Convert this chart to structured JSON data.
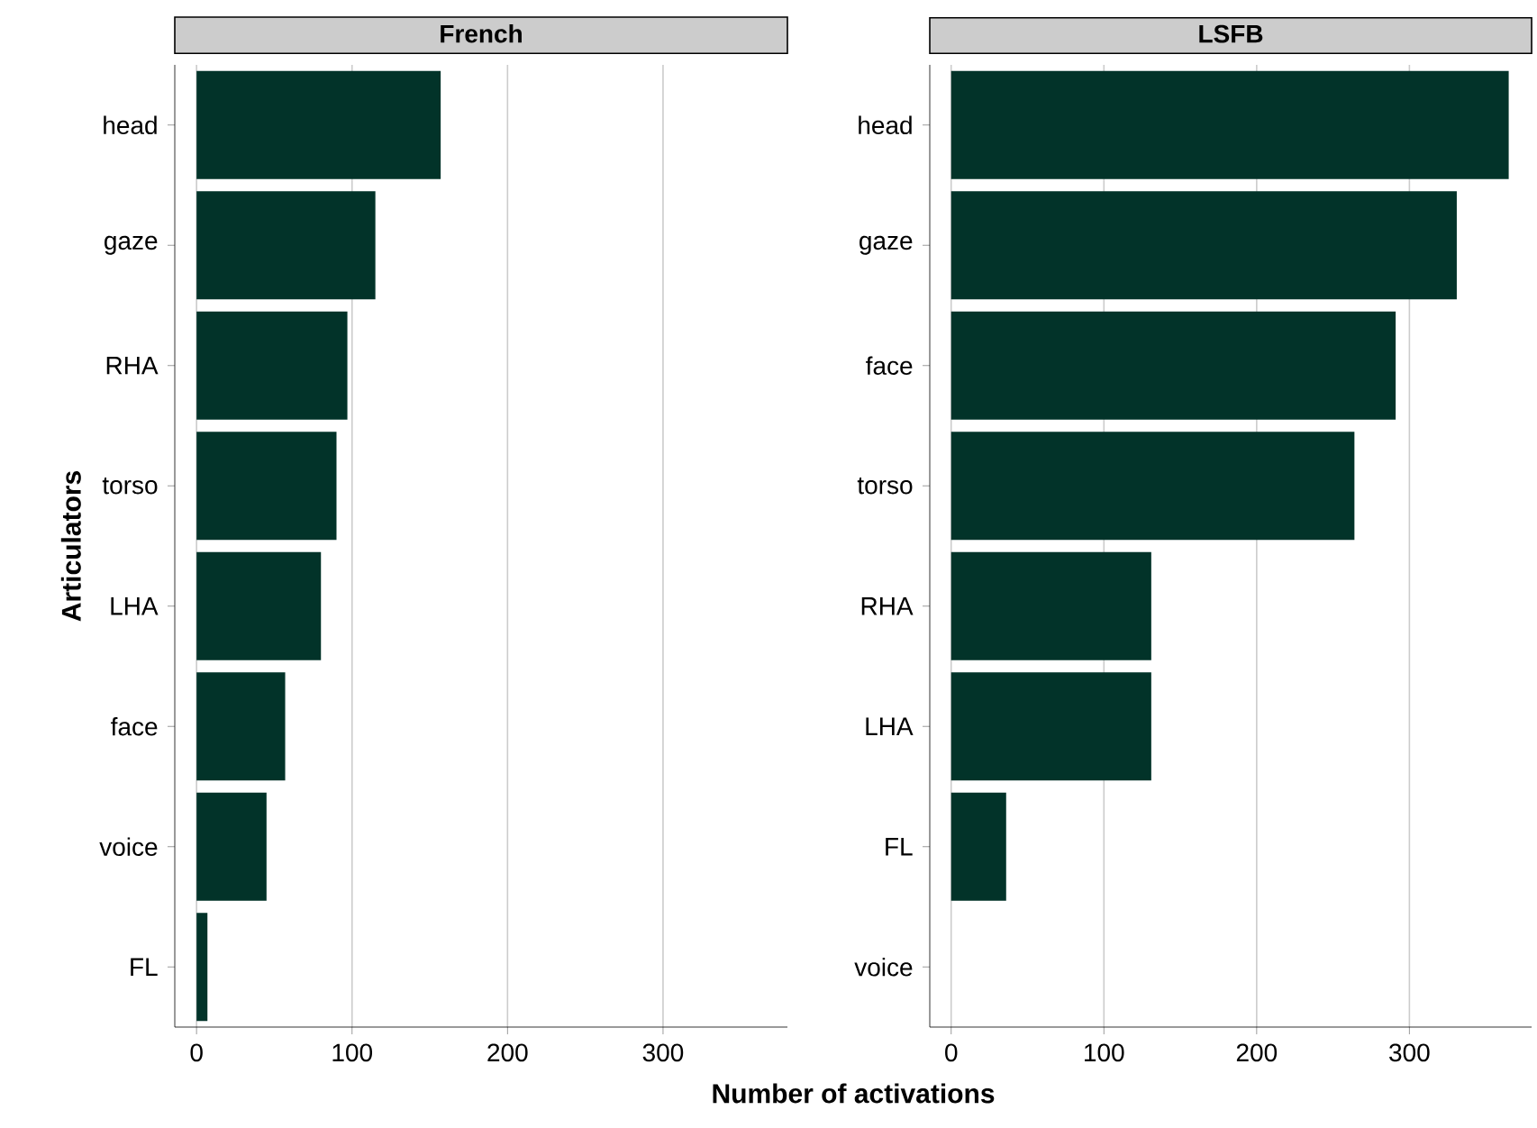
{
  "chart_data": [
    {
      "type": "bar",
      "orientation": "horizontal",
      "title": "French",
      "xlabel": "Number of activations",
      "ylabel": "Articulators",
      "categories": [
        "head",
        "gaze",
        "RHA",
        "torso",
        "LHA",
        "face",
        "voice",
        "FL"
      ],
      "values": [
        157,
        115,
        97,
        90,
        80,
        57,
        45,
        7
      ],
      "color": "#023329",
      "xlim": [
        -14,
        380
      ],
      "xticks": [
        0,
        100,
        200,
        300
      ],
      "grid": "x"
    },
    {
      "type": "bar",
      "orientation": "horizontal",
      "title": "LSFB",
      "categories": [
        "head",
        "gaze",
        "face",
        "torso",
        "RHA",
        "LHA",
        "FL",
        "voice"
      ],
      "values": [
        365,
        331,
        291,
        264,
        131,
        131,
        36,
        0
      ],
      "color": "#023329",
      "xlim": [
        -14,
        380
      ],
      "xticks": [
        0,
        100,
        200,
        300
      ],
      "grid": "x"
    }
  ]
}
